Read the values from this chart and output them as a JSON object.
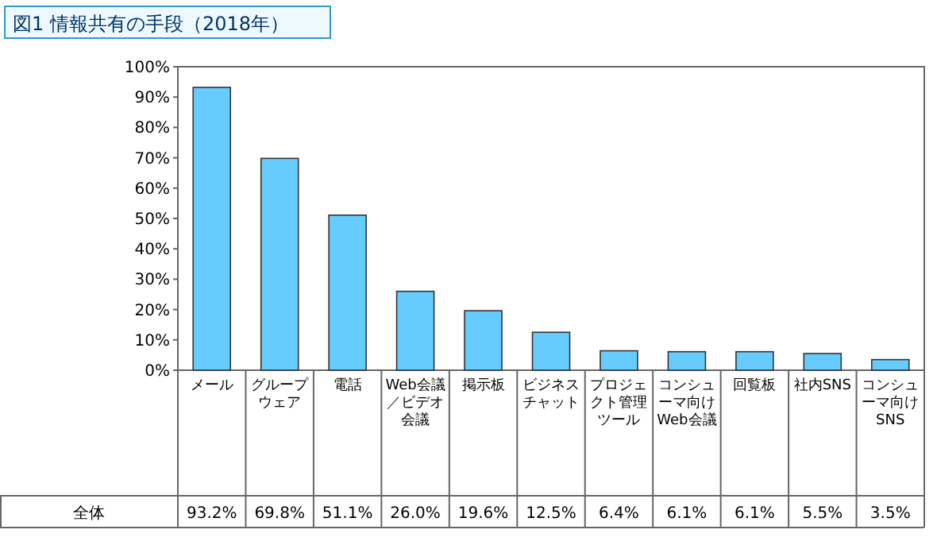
{
  "chart_data": {
    "type": "bar",
    "title": "図1 情報共有の手段（2018年）",
    "categories": [
      "メール",
      "グループウェア",
      "電話",
      "Web会議／ビデオ会議",
      "掲示板",
      "ビジネスチャット",
      "プロジェクト管理ツール",
      "コンシューマ向けWeb会議",
      "回覧板",
      "社内SNS",
      "コンシューマ向けSNS"
    ],
    "series": [
      {
        "name": "全体",
        "color": "#66ccff",
        "values": [
          93.2,
          69.8,
          51.1,
          26.0,
          19.6,
          12.5,
          6.4,
          6.1,
          6.1,
          5.5,
          3.5
        ],
        "value_labels": [
          "93.2%",
          "69.8%",
          "51.1%",
          "26.0%",
          "19.6%",
          "12.5%",
          "6.4%",
          "6.1%",
          "6.1%",
          "5.5%",
          "3.5%"
        ]
      }
    ],
    "ylim": [
      0,
      100
    ],
    "yticks": [
      {
        "value": 0,
        "label": "0%"
      },
      {
        "value": 10,
        "label": "10%"
      },
      {
        "value": 20,
        "label": "20%"
      },
      {
        "value": 30,
        "label": "30%"
      },
      {
        "value": 40,
        "label": "40%"
      },
      {
        "value": 50,
        "label": "50%"
      },
      {
        "value": 60,
        "label": "60%"
      },
      {
        "value": 70,
        "label": "70%"
      },
      {
        "value": 80,
        "label": "80%"
      },
      {
        "value": 90,
        "label": "90%"
      },
      {
        "value": 100,
        "label": "100%"
      }
    ],
    "data_labels": true
  }
}
